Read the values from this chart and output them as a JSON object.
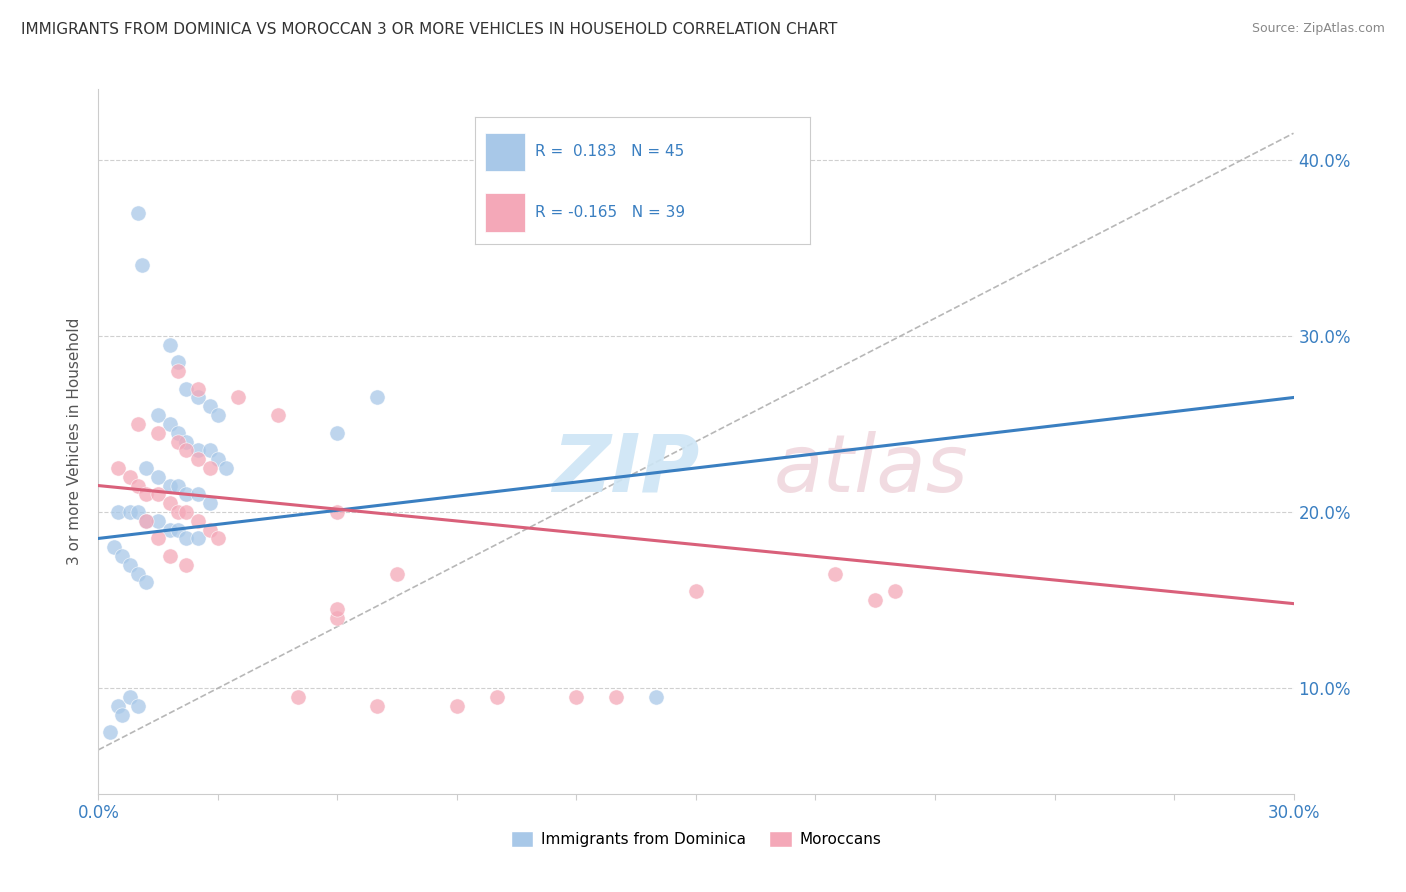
{
  "title": "IMMIGRANTS FROM DOMINICA VS MOROCCAN 3 OR MORE VEHICLES IN HOUSEHOLD CORRELATION CHART",
  "source": "Source: ZipAtlas.com",
  "ylabel": "3 or more Vehicles in Household",
  "y_tick_labels": [
    "10.0%",
    "20.0%",
    "30.0%",
    "40.0%"
  ],
  "y_tick_values": [
    0.1,
    0.2,
    0.3,
    0.4
  ],
  "x_range": [
    0.0,
    0.3
  ],
  "y_range": [
    0.04,
    0.44
  ],
  "R_blue": 0.183,
  "N_blue": 45,
  "R_pink": -0.165,
  "N_pink": 39,
  "legend1_label": "Immigrants from Dominica",
  "legend2_label": "Moroccans",
  "blue_color": "#a8c8e8",
  "pink_color": "#f4a8b8",
  "blue_line_color": "#3a7fc1",
  "pink_line_color": "#d9607a",
  "gray_line_color": "#b0b0b0",
  "blue_scatter_x": [
    0.01,
    0.011,
    0.018,
    0.02,
    0.022,
    0.025,
    0.028,
    0.03,
    0.015,
    0.018,
    0.02,
    0.022,
    0.025,
    0.028,
    0.03,
    0.032,
    0.012,
    0.015,
    0.018,
    0.02,
    0.022,
    0.025,
    0.028,
    0.005,
    0.008,
    0.01,
    0.012,
    0.015,
    0.018,
    0.02,
    0.022,
    0.025,
    0.004,
    0.006,
    0.008,
    0.01,
    0.012,
    0.06,
    0.07,
    0.005,
    0.003,
    0.006,
    0.008,
    0.01,
    0.14
  ],
  "blue_scatter_y": [
    0.37,
    0.34,
    0.295,
    0.285,
    0.27,
    0.265,
    0.26,
    0.255,
    0.255,
    0.25,
    0.245,
    0.24,
    0.235,
    0.235,
    0.23,
    0.225,
    0.225,
    0.22,
    0.215,
    0.215,
    0.21,
    0.21,
    0.205,
    0.2,
    0.2,
    0.2,
    0.195,
    0.195,
    0.19,
    0.19,
    0.185,
    0.185,
    0.18,
    0.175,
    0.17,
    0.165,
    0.16,
    0.245,
    0.265,
    0.09,
    0.075,
    0.085,
    0.095,
    0.09,
    0.095
  ],
  "pink_scatter_x": [
    0.02,
    0.025,
    0.035,
    0.045,
    0.01,
    0.015,
    0.02,
    0.022,
    0.025,
    0.028,
    0.005,
    0.008,
    0.01,
    0.012,
    0.015,
    0.018,
    0.02,
    0.022,
    0.025,
    0.028,
    0.03,
    0.012,
    0.015,
    0.018,
    0.022,
    0.06,
    0.185,
    0.15,
    0.2,
    0.06,
    0.1,
    0.06,
    0.195,
    0.13,
    0.05,
    0.07,
    0.09,
    0.12,
    0.075
  ],
  "pink_scatter_y": [
    0.28,
    0.27,
    0.265,
    0.255,
    0.25,
    0.245,
    0.24,
    0.235,
    0.23,
    0.225,
    0.225,
    0.22,
    0.215,
    0.21,
    0.21,
    0.205,
    0.2,
    0.2,
    0.195,
    0.19,
    0.185,
    0.195,
    0.185,
    0.175,
    0.17,
    0.2,
    0.165,
    0.155,
    0.155,
    0.14,
    0.095,
    0.145,
    0.15,
    0.095,
    0.095,
    0.09,
    0.09,
    0.095,
    0.165
  ],
  "blue_trend_x0": 0.0,
  "blue_trend_y0": 0.185,
  "blue_trend_x1": 0.3,
  "blue_trend_y1": 0.265,
  "pink_trend_x0": 0.0,
  "pink_trend_y0": 0.215,
  "pink_trend_x1": 0.3,
  "pink_trend_y1": 0.148,
  "gray_trend_x0": 0.0,
  "gray_trend_y0": 0.065,
  "gray_trend_x1": 0.3,
  "gray_trend_y1": 0.415
}
